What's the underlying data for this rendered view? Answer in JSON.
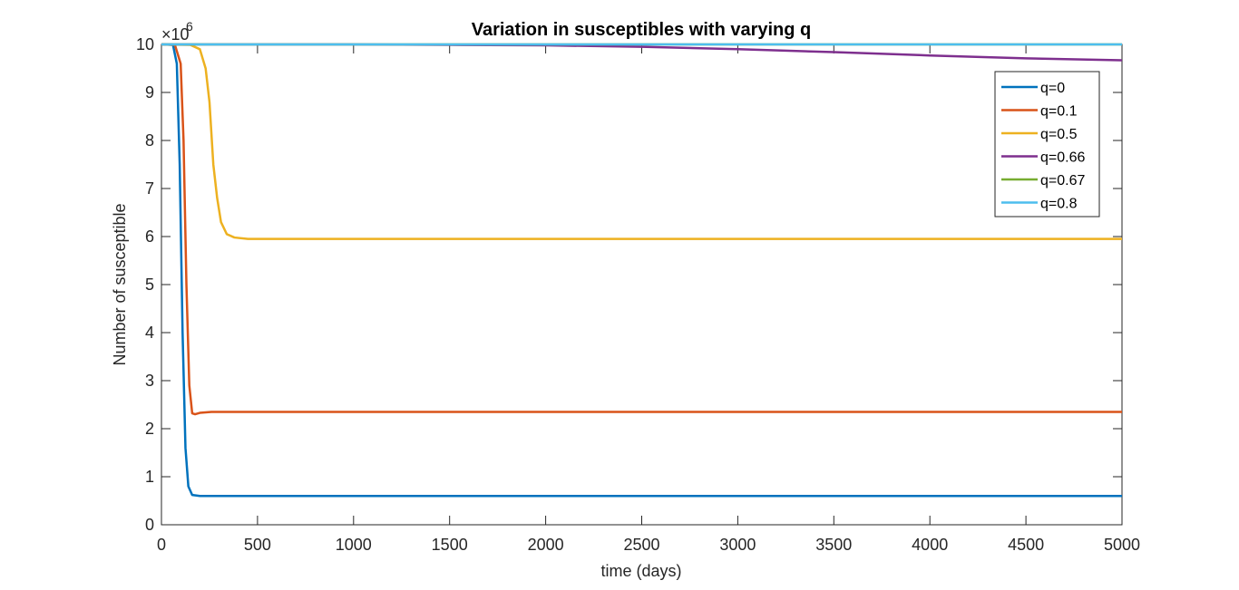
{
  "chart_data": {
    "type": "line",
    "title": "Variation in susceptibles with varying q",
    "xlabel": "time (days)",
    "ylabel": "Number of susceptible",
    "xlim": [
      0,
      5000
    ],
    "ylim": [
      0,
      10
    ],
    "y_multiplier_base": "×10",
    "y_multiplier_exponent": "6",
    "xticks": [
      "0",
      "500",
      "1000",
      "1500",
      "2000",
      "2500",
      "3000",
      "3500",
      "4000",
      "4500",
      "5000"
    ],
    "yticks": [
      "0",
      "1",
      "2",
      "3",
      "4",
      "5",
      "6",
      "7",
      "8",
      "9",
      "10"
    ],
    "legend_position": "top-right",
    "grid": false,
    "series": [
      {
        "name": "q=0",
        "color": "#0072BD",
        "points": [
          [
            0,
            10
          ],
          [
            60,
            9.99
          ],
          [
            80,
            9.6
          ],
          [
            95,
            7.5
          ],
          [
            110,
            4.0
          ],
          [
            125,
            1.6
          ],
          [
            140,
            0.8
          ],
          [
            160,
            0.62
          ],
          [
            200,
            0.6
          ],
          [
            5000,
            0.6
          ]
        ]
      },
      {
        "name": "q=0.1",
        "color": "#D95319",
        "points": [
          [
            0,
            10
          ],
          [
            70,
            9.99
          ],
          [
            100,
            9.6
          ],
          [
            115,
            8.0
          ],
          [
            130,
            5.0
          ],
          [
            145,
            2.9
          ],
          [
            160,
            2.32
          ],
          [
            175,
            2.3
          ],
          [
            200,
            2.33
          ],
          [
            260,
            2.35
          ],
          [
            5000,
            2.35
          ]
        ]
      },
      {
        "name": "q=0.5",
        "color": "#EDB120",
        "points": [
          [
            0,
            10
          ],
          [
            150,
            9.99
          ],
          [
            200,
            9.9
          ],
          [
            230,
            9.5
          ],
          [
            250,
            8.8
          ],
          [
            270,
            7.5
          ],
          [
            290,
            6.8
          ],
          [
            310,
            6.3
          ],
          [
            340,
            6.05
          ],
          [
            380,
            5.98
          ],
          [
            450,
            5.95
          ],
          [
            600,
            5.95
          ],
          [
            5000,
            5.95
          ]
        ]
      },
      {
        "name": "q=0.66",
        "color": "#7E2F8E",
        "points": [
          [
            0,
            10
          ],
          [
            1000,
            10
          ],
          [
            1500,
            9.99
          ],
          [
            2000,
            9.98
          ],
          [
            2500,
            9.95
          ],
          [
            3000,
            9.9
          ],
          [
            3500,
            9.84
          ],
          [
            4000,
            9.77
          ],
          [
            4500,
            9.71
          ],
          [
            5000,
            9.67
          ]
        ]
      },
      {
        "name": "q=0.67",
        "color": "#77AC30",
        "points": [
          [
            0,
            10
          ],
          [
            5000,
            10
          ]
        ]
      },
      {
        "name": "q=0.8",
        "color": "#4DBEEE",
        "points": [
          [
            0,
            10
          ],
          [
            5000,
            10
          ]
        ]
      }
    ]
  }
}
